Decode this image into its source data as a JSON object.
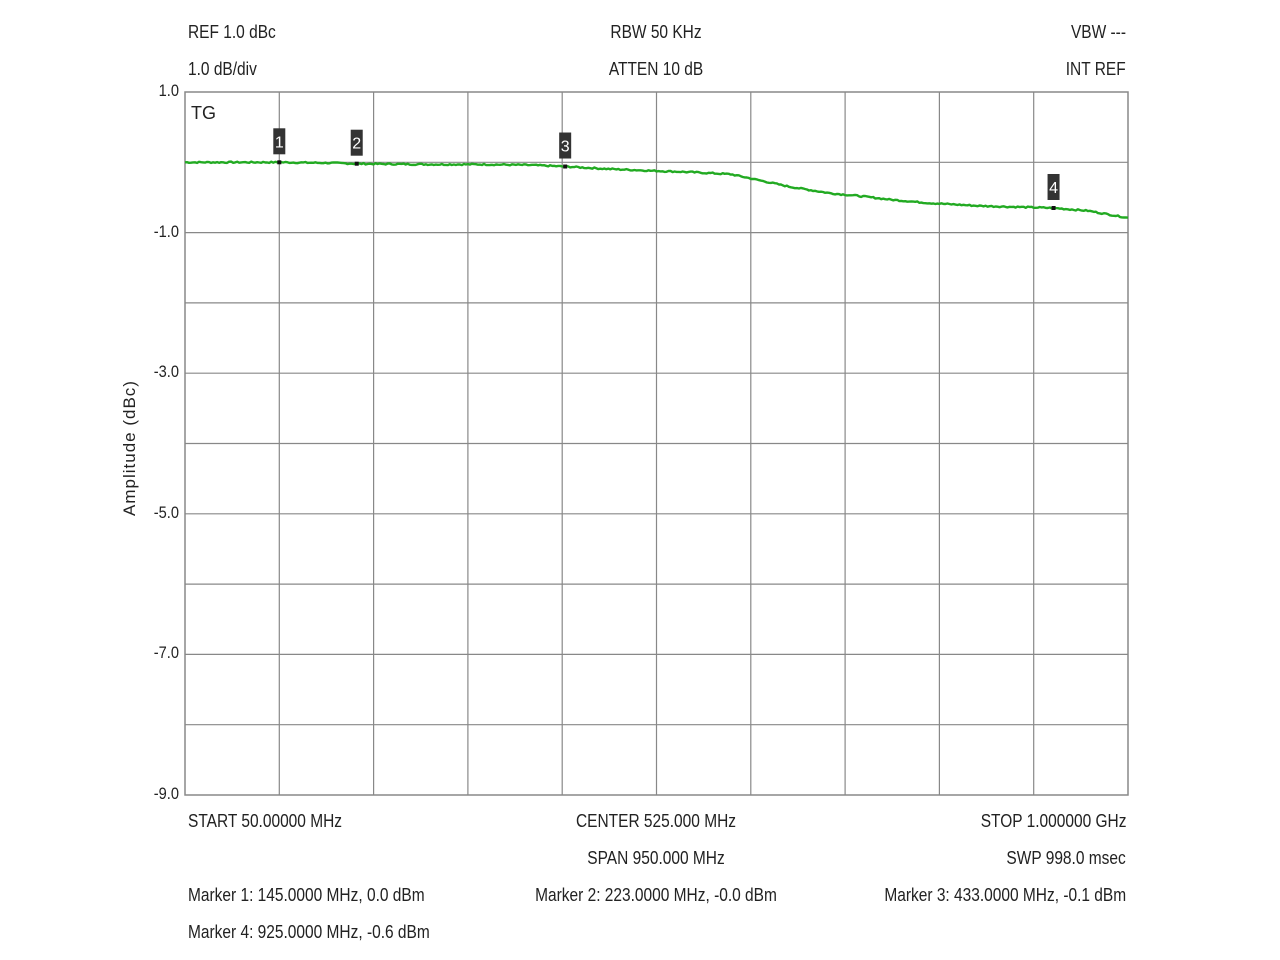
{
  "header": {
    "ref": "REF 1.0 dBc",
    "scale": "1.0 dB/div",
    "rbw": "RBW 50 KHz",
    "atten": "ATTEN 10 dB",
    "vbw": "VBW ---",
    "intref": "INT REF"
  },
  "plot_label": "TG",
  "footer": {
    "start": "START 50.00000 MHz",
    "center": "CENTER 525.000 MHz",
    "stop": "STOP 1.000000 GHz",
    "span": "SPAN 950.000 MHz",
    "sweep": "SWP 998.0 msec"
  },
  "markers_text": [
    "Marker 1: 145.0000 MHz, 0.0 dBm",
    "Marker 2: 223.0000 MHz, -0.0 dBm",
    "Marker 3: 433.0000 MHz, -0.1 dBm",
    "Marker 4: 925.0000 MHz, -0.6 dBm"
  ],
  "colors": {
    "trace": "#22aa22",
    "grid": "#888888",
    "marker_bg": "#333333"
  },
  "chart_data": {
    "type": "line",
    "xlabel": "",
    "ylabel": "Amplitude (dBc)",
    "xlim": [
      50,
      1000
    ],
    "ylim": [
      -9,
      1
    ],
    "x_unit": "MHz",
    "yticks": [
      "1.0",
      "-1.0",
      "-3.0",
      "-5.0",
      "-7.0",
      "-9.0"
    ],
    "ytick_values": [
      1,
      -1,
      -3,
      -5,
      -7,
      -9
    ],
    "grid": true,
    "x_divisions": 10,
    "y_divisions": 10,
    "series": [
      {
        "x": [
          50,
          100,
          145,
          200,
          223,
          300,
          350,
          400,
          433,
          470,
          520,
          560,
          600,
          630,
          660,
          700,
          730,
          760,
          800,
          850,
          900,
          925,
          960,
          1000
        ],
        "y": [
          0.0,
          0.0,
          0.0,
          -0.01,
          -0.02,
          -0.03,
          -0.03,
          -0.04,
          -0.06,
          -0.09,
          -0.12,
          -0.14,
          -0.17,
          -0.26,
          -0.35,
          -0.44,
          -0.48,
          -0.53,
          -0.58,
          -0.62,
          -0.64,
          -0.65,
          -0.69,
          -0.79
        ]
      }
    ],
    "markers": [
      {
        "label": "1",
        "x": 145,
        "y": 0.0
      },
      {
        "label": "2",
        "x": 223,
        "y": -0.0
      },
      {
        "label": "3",
        "x": 433,
        "y": -0.1
      },
      {
        "label": "4",
        "x": 925,
        "y": -0.6
      }
    ]
  }
}
